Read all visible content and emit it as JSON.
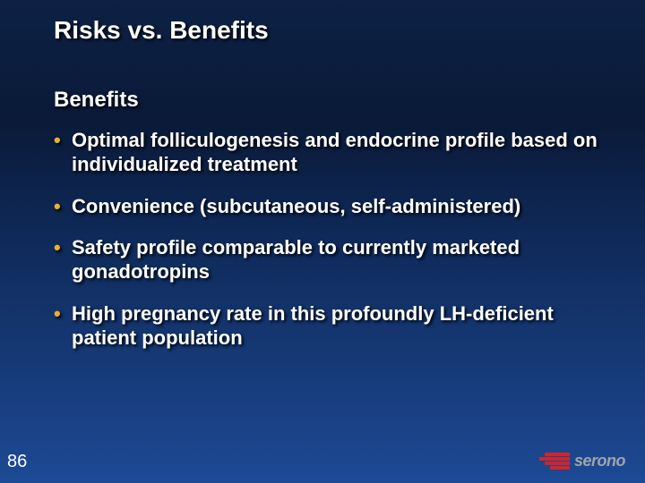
{
  "slide": {
    "title": "Risks vs. Benefits",
    "subtitle": "Benefits",
    "bullets": [
      "Optimal folliculogenesis and endocrine profile based on individualized treatment",
      "Convenience (subcutaneous, self-administered)",
      "Safety profile comparable to currently marketed gonadotropins",
      "High pregnancy rate in this profoundly LH-deficient patient population"
    ],
    "number": "86",
    "logo_text": "serono"
  },
  "style": {
    "title_color": "#ffffff",
    "title_fontsize": 28,
    "subtitle_fontsize": 24,
    "bullet_fontsize": 22,
    "bullet_dot_color": "#e8b030",
    "text_shadow": "2px 2px 3px rgba(0,0,0,0.95)",
    "background_gradient": [
      "#0d2145",
      "#0a1a38",
      "#0f2a5a",
      "#163976",
      "#1d4a95"
    ],
    "logo_stripe_color": "#d1252a",
    "logo_text_color": "#9fa4aa",
    "slide_number_color": "#ffffff",
    "slide_number_fontsize": 20
  }
}
